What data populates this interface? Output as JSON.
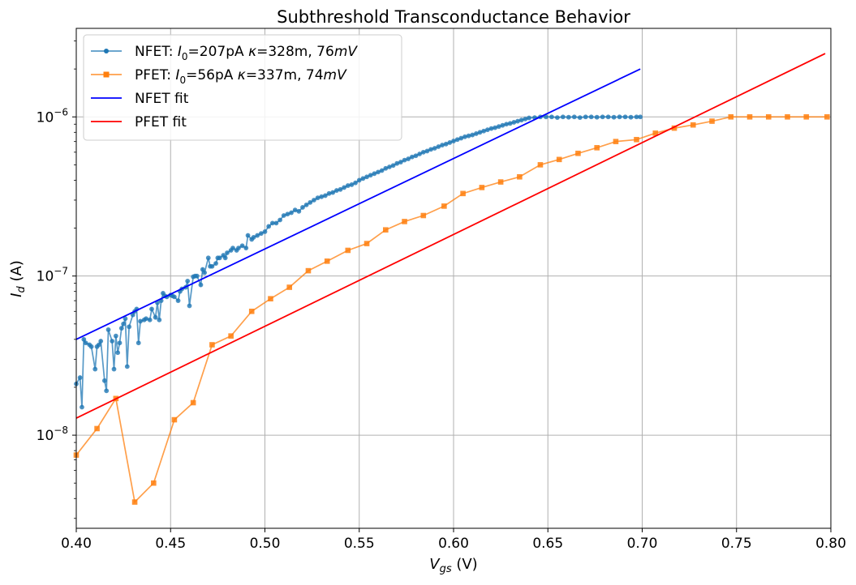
{
  "chart_data": {
    "type": "line",
    "title": "Subthreshold Transconductance Behavior",
    "xlabel": "V_gs (V)",
    "ylabel": "I_d (A)",
    "xlim": [
      0.4,
      0.8
    ],
    "ylim": [
      2.6e-09,
      3.6e-06
    ],
    "yscale": "log",
    "grid": true,
    "legend_position": "top-left",
    "x_ticks": [
      0.4,
      0.45,
      0.5,
      0.55,
      0.6,
      0.65,
      0.7,
      0.75,
      0.8
    ],
    "x_tick_labels": [
      "0.40",
      "0.45",
      "0.50",
      "0.55",
      "0.60",
      "0.65",
      "0.70",
      "0.75",
      "0.80"
    ],
    "y_ticks": [
      1e-08,
      1e-07,
      1e-06
    ],
    "y_tick_labels": [
      {
        "base": "10",
        "exp": "−8"
      },
      {
        "base": "10",
        "exp": "−7"
      },
      {
        "base": "10",
        "exp": "−6"
      }
    ],
    "series": [
      {
        "name": "NFET: I0=207pA κ=328m, 76mV",
        "legend": {
          "pre": "NFET: ",
          "I": "I",
          "sub": "0",
          "mid": "=207pA ",
          "kappa": "κ",
          "post": "=328m, 76",
          "unit": "mV"
        },
        "color": "#1f77b4",
        "marker": "circle",
        "x": [
          0.4,
          0.402,
          0.403,
          0.404,
          0.405,
          0.407,
          0.408,
          0.41,
          0.411,
          0.412,
          0.413,
          0.415,
          0.416,
          0.417,
          0.419,
          0.42,
          0.421,
          0.422,
          0.423,
          0.424,
          0.425,
          0.426,
          0.427,
          0.428,
          0.43,
          0.431,
          0.432,
          0.433,
          0.434,
          0.436,
          0.437,
          0.439,
          0.44,
          0.442,
          0.443,
          0.444,
          0.445,
          0.446,
          0.447,
          0.448,
          0.45,
          0.451,
          0.452,
          0.454,
          0.455,
          0.456,
          0.458,
          0.459,
          0.46,
          0.462,
          0.463,
          0.464,
          0.466,
          0.467,
          0.468,
          0.47,
          0.471,
          0.472,
          0.474,
          0.475,
          0.476,
          0.478,
          0.479,
          0.48,
          0.482,
          0.483,
          0.485,
          0.486,
          0.488,
          0.49,
          0.491,
          0.493,
          0.494,
          0.496,
          0.498,
          0.5,
          0.502,
          0.504,
          0.506,
          0.508,
          0.51,
          0.512,
          0.514,
          0.516,
          0.518,
          0.52,
          0.522,
          0.524,
          0.526,
          0.528,
          0.53,
          0.532,
          0.534,
          0.536,
          0.538,
          0.54,
          0.542,
          0.544,
          0.546,
          0.548,
          0.55,
          0.552,
          0.554,
          0.556,
          0.558,
          0.56,
          0.562,
          0.564,
          0.566,
          0.568,
          0.57,
          0.572,
          0.574,
          0.576,
          0.578,
          0.58,
          0.582,
          0.584,
          0.586,
          0.588,
          0.59,
          0.592,
          0.594,
          0.596,
          0.598,
          0.6,
          0.602,
          0.604,
          0.606,
          0.608,
          0.61,
          0.612,
          0.614,
          0.616,
          0.618,
          0.62,
          0.622,
          0.624,
          0.626,
          0.628,
          0.63,
          0.632,
          0.634,
          0.636,
          0.638,
          0.64,
          0.643,
          0.646,
          0.649,
          0.652,
          0.655,
          0.658,
          0.661,
          0.664,
          0.667,
          0.67,
          0.673,
          0.676,
          0.679,
          0.682,
          0.685,
          0.688,
          0.691,
          0.694,
          0.697,
          0.699
        ],
        "y": [
          2.1e-08,
          2.3e-08,
          1.5e-08,
          4e-08,
          3.8e-08,
          3.7e-08,
          3.6e-08,
          2.6e-08,
          3.6e-08,
          3.7e-08,
          3.9e-08,
          2.2e-08,
          1.9e-08,
          4.6e-08,
          3.9e-08,
          2.6e-08,
          4.2e-08,
          3.3e-08,
          3.8e-08,
          4.7e-08,
          5e-08,
          5.4e-08,
          2.7e-08,
          4.8e-08,
          5.7e-08,
          6e-08,
          6.2e-08,
          3.8e-08,
          5.2e-08,
          5.3e-08,
          5.4e-08,
          5.3e-08,
          6.2e-08,
          5.5e-08,
          6.8e-08,
          5.3e-08,
          7e-08,
          7.8e-08,
          7.5e-08,
          7.4e-08,
          7.6e-08,
          7.5e-08,
          7.4e-08,
          7e-08,
          8e-08,
          8.3e-08,
          8.5e-08,
          9.3e-08,
          6.5e-08,
          9.9e-08,
          1e-07,
          1e-07,
          8.8e-08,
          1.1e-07,
          1.05e-07,
          1.3e-07,
          1.15e-07,
          1.15e-07,
          1.2e-07,
          1.3e-07,
          1.3e-07,
          1.35e-07,
          1.3e-07,
          1.4e-07,
          1.45e-07,
          1.5e-07,
          1.45e-07,
          1.5e-07,
          1.55e-07,
          1.5e-07,
          1.8e-07,
          1.7e-07,
          1.75e-07,
          1.8e-07,
          1.85e-07,
          1.9e-07,
          2.05e-07,
          2.15e-07,
          2.15e-07,
          2.25e-07,
          2.4e-07,
          2.45e-07,
          2.5e-07,
          2.6e-07,
          2.55e-07,
          2.7e-07,
          2.8e-07,
          2.9e-07,
          3e-07,
          3.1e-07,
          3.15e-07,
          3.2e-07,
          3.3e-07,
          3.35e-07,
          3.45e-07,
          3.5e-07,
          3.6e-07,
          3.7e-07,
          3.75e-07,
          3.85e-07,
          4e-07,
          4.1e-07,
          4.2e-07,
          4.3e-07,
          4.4e-07,
          4.5e-07,
          4.6e-07,
          4.75e-07,
          4.85e-07,
          4.95e-07,
          5.1e-07,
          5.2e-07,
          5.35e-07,
          5.45e-07,
          5.6e-07,
          5.7e-07,
          5.85e-07,
          6e-07,
          6.1e-07,
          6.25e-07,
          6.35e-07,
          6.5e-07,
          6.65e-07,
          6.75e-07,
          6.9e-07,
          7.05e-07,
          7.2e-07,
          7.35e-07,
          7.5e-07,
          7.6e-07,
          7.7e-07,
          7.85e-07,
          8e-07,
          8.15e-07,
          8.3e-07,
          8.45e-07,
          8.55e-07,
          8.7e-07,
          8.85e-07,
          9e-07,
          9.1e-07,
          9.25e-07,
          9.4e-07,
          9.55e-07,
          9.7e-07,
          9.85e-07,
          9.9e-07,
          1e-06,
          1e-06,
          1e-06,
          9.9e-07,
          1e-06,
          9.95e-07,
          1e-06,
          9.9e-07,
          1e-06,
          1e-06,
          9.95e-07,
          1e-06,
          1e-06,
          9.95e-07,
          1e-06,
          1e-06,
          9.95e-07,
          1e-06,
          1e-06
        ]
      },
      {
        "name": "PFET: I0=56pA κ=337m, 74mV",
        "legend": {
          "pre": "PFET: ",
          "I": "I",
          "sub": "0",
          "mid": "=56pA ",
          "kappa": "κ",
          "post": "=337m, 74",
          "unit": "mV"
        },
        "color": "#ff7f0e",
        "marker": "square",
        "x": [
          0.4,
          0.411,
          0.421,
          0.431,
          0.441,
          0.452,
          0.462,
          0.472,
          0.482,
          0.493,
          0.503,
          0.513,
          0.523,
          0.533,
          0.544,
          0.554,
          0.564,
          0.574,
          0.584,
          0.595,
          0.605,
          0.615,
          0.625,
          0.635,
          0.646,
          0.656,
          0.666,
          0.676,
          0.686,
          0.697,
          0.707,
          0.717,
          0.727,
          0.737,
          0.747,
          0.757,
          0.767,
          0.777,
          0.787,
          0.798
        ],
        "y": [
          7.5e-09,
          1.1e-08,
          1.7e-08,
          3.8e-09,
          5e-09,
          1.25e-08,
          1.6e-08,
          3.7e-08,
          4.2e-08,
          6e-08,
          7.2e-08,
          8.5e-08,
          1.08e-07,
          1.24e-07,
          1.45e-07,
          1.6e-07,
          1.95e-07,
          2.2e-07,
          2.4e-07,
          2.75e-07,
          3.3e-07,
          3.6e-07,
          3.9e-07,
          4.2e-07,
          5e-07,
          5.4e-07,
          5.9e-07,
          6.4e-07,
          7e-07,
          7.2e-07,
          7.9e-07,
          8.5e-07,
          8.9e-07,
          9.4e-07,
          1e-06,
          1e-06,
          1e-06,
          1e-06,
          1e-06,
          1e-06
        ]
      },
      {
        "name": "NFET fit",
        "color": "#0000ff",
        "marker": "none",
        "x": [
          0.4,
          0.699
        ],
        "y": [
          4e-08,
          2e-06
        ]
      },
      {
        "name": "PFET fit",
        "color": "#ff0000",
        "marker": "none",
        "x": [
          0.4,
          0.797
        ],
        "y": [
          1.28e-08,
          2.5e-06
        ]
      }
    ]
  }
}
